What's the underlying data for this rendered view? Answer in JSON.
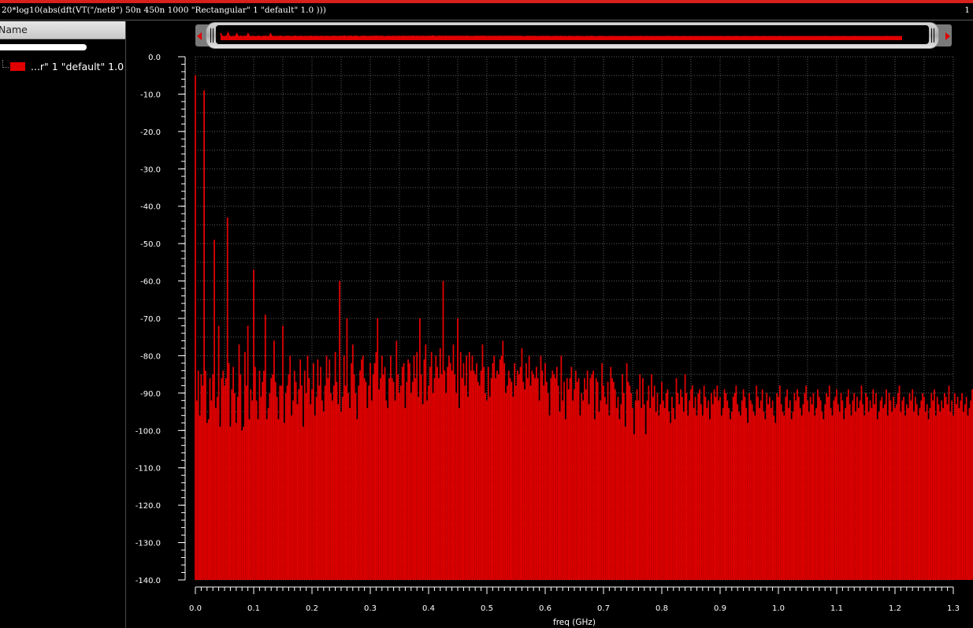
{
  "title_bar": {
    "expression": "20*log10(abs(dft(VT(\"/net8\") 50n 450n 1000 \"Rectangular\" 1 \"default\" 1.0 )))",
    "subwindow_index": "1"
  },
  "trace_panel": {
    "header": "Name",
    "trace_label": "...r\" 1 \"default\" 1.0"
  },
  "colors": {
    "trace": "#e00000",
    "background": "#000000",
    "grid": "#5c5c5c",
    "title_bar_accent": "#d8201c"
  },
  "chart_data": {
    "type": "bar",
    "title": "20*log10(abs(dft(VT(\"/net8\") 50n 450n 1000 \"Rectangular\" 1 \"default\" 1.0 )))",
    "xlabel": "freq (GHz)",
    "ylabel": "",
    "xlim": [
      0.0,
      1.3
    ],
    "ylim": [
      -140.0,
      0.0
    ],
    "x_ticks": [
      "0.0",
      "0.1",
      "0.2",
      "0.3",
      "0.4",
      "0.5",
      "0.6",
      "0.7",
      "0.8",
      "0.9",
      "1.0",
      "1.1",
      "1.2",
      "1.3"
    ],
    "y_ticks": [
      "0.0",
      "-10.0",
      "-20.0",
      "-30.0",
      "-40.0",
      "-50.0",
      "-60.0",
      "-70.0",
      "-80.0",
      "-90.0",
      "-100.0",
      "-110.0",
      "-120.0",
      "-130.0",
      "-140.0"
    ],
    "grid": true,
    "bar_baseline": -140.0,
    "series": [
      {
        "name": "...r\" 1 \"default\" 1.0",
        "color": "#e00000",
        "x_start": 0.0,
        "x_step": 0.0025,
        "values": [
          -5,
          -92,
          -84,
          -96,
          -85,
          -88,
          -9,
          -84,
          -98,
          -97,
          -86,
          -92,
          -85,
          -49,
          -94,
          -91,
          -72,
          -99,
          -86,
          -84,
          -88,
          -86,
          -43,
          -82,
          -99,
          -89,
          -83,
          -90,
          -98,
          -91,
          -77,
          -85,
          -100,
          -99,
          -79,
          -88,
          -72,
          -97,
          -89,
          -92,
          -57,
          -83,
          -92,
          -97,
          -84,
          -91,
          -87,
          -84,
          -69,
          -97,
          -94,
          -90,
          -86,
          -85,
          -76,
          -87,
          -91,
          -97,
          -88,
          -88,
          -72,
          -98,
          -90,
          -88,
          -85,
          -80,
          -96,
          -92,
          -84,
          -87,
          -93,
          -89,
          -81,
          -88,
          -99,
          -84,
          -90,
          -80,
          -86,
          -93,
          -89,
          -82,
          -96,
          -91,
          -81,
          -88,
          -83,
          -92,
          -95,
          -88,
          -80,
          -86,
          -81,
          -90,
          -92,
          -88,
          -79,
          -87,
          -93,
          -60,
          -95,
          -91,
          -80,
          -88,
          -70,
          -90,
          -94,
          -82,
          -77,
          -85,
          -90,
          -97,
          -88,
          -84,
          -81,
          -80,
          -86,
          -87,
          -94,
          -88,
          -82,
          -92,
          -85,
          -82,
          -79,
          -70,
          -89,
          -86,
          -80,
          -85,
          -83,
          -92,
          -94,
          -86,
          -80,
          -86,
          -87,
          -92,
          -76,
          -85,
          -90,
          -88,
          -83,
          -82,
          -94,
          -87,
          -81,
          -82,
          -90,
          -87,
          -80,
          -86,
          -79,
          -91,
          -70,
          -85,
          -93,
          -81,
          -77,
          -92,
          -88,
          -83,
          -79,
          -90,
          -86,
          -80,
          -83,
          -86,
          -78,
          -85,
          -60,
          -84,
          -90,
          -83,
          -80,
          -82,
          -84,
          -77,
          -85,
          -90,
          -70,
          -94,
          -79,
          -86,
          -82,
          -88,
          -80,
          -91,
          -79,
          -84,
          -80,
          -84,
          -85,
          -82,
          -87,
          -88,
          -84,
          -77,
          -83,
          -90,
          -92,
          -83,
          -91,
          -86,
          -82,
          -80,
          -86,
          -84,
          -85,
          -81,
          -80,
          -76,
          -82,
          -90,
          -88,
          -84,
          -86,
          -87,
          -91,
          -82,
          -88,
          -84,
          -85,
          -83,
          -78,
          -87,
          -89,
          -82,
          -86,
          -80,
          -88,
          -84,
          -85,
          -86,
          -83,
          -86,
          -92,
          -80,
          -84,
          -88,
          -82,
          -87,
          -90,
          -96,
          -86,
          -84,
          -85,
          -86,
          -83,
          -88,
          -95,
          -80,
          -92,
          -87,
          -97,
          -86,
          -89,
          -86,
          -83,
          -92,
          -89,
          -84,
          -87,
          -86,
          -96,
          -90,
          -92,
          -86,
          -89,
          -84,
          -93,
          -86,
          -85,
          -84,
          -97,
          -86,
          -87,
          -95,
          -92,
          -82,
          -88,
          -91,
          -93,
          -87,
          -96,
          -83,
          -86,
          -87,
          -89,
          -94,
          -91,
          -97,
          -93,
          -85,
          -90,
          -99,
          -82,
          -87,
          -88,
          -90,
          -94,
          -101,
          -92,
          -89,
          -92,
          -85,
          -94,
          -86,
          -93,
          -101,
          -92,
          -88,
          -94,
          -85,
          -91,
          -88,
          -95,
          -90,
          -96,
          -93,
          -87,
          -92,
          -94,
          -90,
          -89,
          -95,
          -98,
          -91,
          -94,
          -97,
          -86,
          -90,
          -93,
          -89,
          -91,
          -95,
          -85,
          -90,
          -96,
          -92,
          -89,
          -88,
          -94,
          -91,
          -96,
          -90,
          -89,
          -93,
          -96,
          -88,
          -91,
          -94,
          -92,
          -97,
          -90,
          -93,
          -89,
          -91,
          -88,
          -92,
          -91,
          -96,
          -94,
          -89,
          -90,
          -92,
          -94,
          -97,
          -95,
          -91,
          -90,
          -88,
          -93,
          -95,
          -96,
          -92,
          -89,
          -91,
          -94,
          -98,
          -90,
          -92,
          -93,
          -95,
          -96,
          -88,
          -91,
          -94,
          -92,
          -89,
          -95,
          -97,
          -90,
          -93,
          -91,
          -94,
          -92,
          -96,
          -98,
          -90,
          -91,
          -88,
          -93,
          -95,
          -96,
          -91,
          -89,
          -94,
          -92,
          -97,
          -95,
          -90,
          -92,
          -89,
          -91,
          -94,
          -96,
          -93,
          -90,
          -88,
          -92,
          -95,
          -91,
          -93,
          -90,
          -96,
          -94,
          -89,
          -91,
          -92,
          -95,
          -97,
          -93,
          -90,
          -91,
          -88,
          -94,
          -96,
          -92,
          -91,
          -89,
          -93,
          -95,
          -90,
          -92,
          -97,
          -94,
          -91,
          -89,
          -93,
          -96,
          -92,
          -90,
          -95,
          -91,
          -94,
          -92,
          -88,
          -93,
          -96,
          -90,
          -91,
          -95,
          -92,
          -94,
          -89,
          -93,
          -90,
          -97,
          -95,
          -92,
          -91,
          -94,
          -93,
          -89,
          -96,
          -90,
          -92,
          -95,
          -91,
          -94,
          -93,
          -90,
          -88,
          -95,
          -92,
          -91,
          -96,
          -93,
          -94,
          -90,
          -92,
          -89,
          -95,
          -91,
          -93,
          -96,
          -94,
          -92,
          -90,
          -91,
          -95,
          -93,
          -97,
          -94,
          -90,
          -92,
          -89,
          -96,
          -91,
          -93,
          -95,
          -92,
          -94,
          -90,
          -91,
          -93,
          -88,
          -95,
          -92,
          -96,
          -90,
          -93,
          -91,
          -94,
          -92,
          -90,
          -95,
          -93,
          -91,
          -96,
          -94,
          -92,
          -89,
          -93,
          -90,
          -95,
          -91,
          -94,
          -92,
          -96,
          -93,
          -90,
          -91,
          -94,
          -92
        ]
      }
    ]
  }
}
